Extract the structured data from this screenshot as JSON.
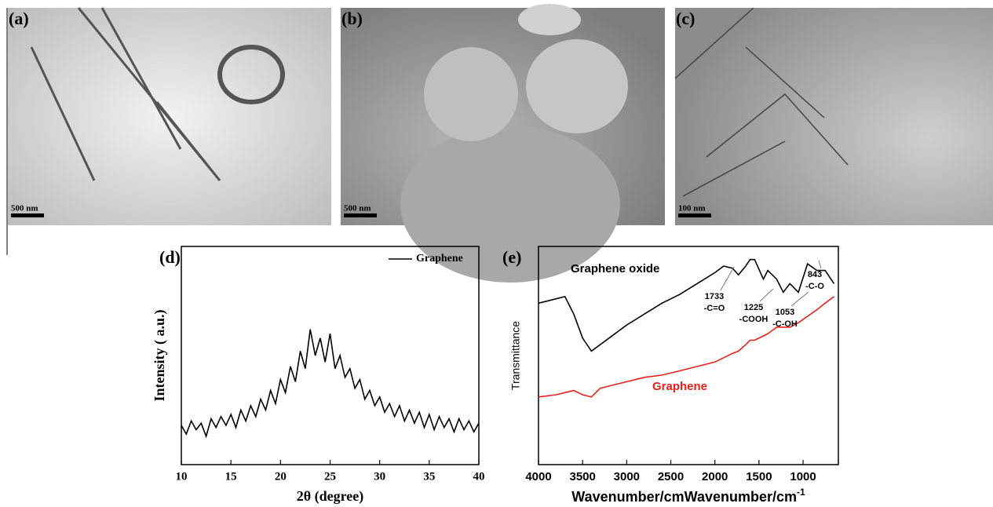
{
  "panels": [
    {
      "label": "(a)",
      "scale_bar": "500 nm"
    },
    {
      "label": "(b)",
      "scale_bar": "500 nm"
    },
    {
      "label": "(c)",
      "scale_bar": "100 nm"
    }
  ],
  "chart_data": [
    {
      "type": "line",
      "panel_label": "(d)",
      "xlabel": "2θ (degree)",
      "ylabel": "Intensity ( a.u.)",
      "legend": "upper right",
      "x": [
        10,
        10.5,
        11,
        11.5,
        12,
        12.5,
        13,
        13.5,
        14,
        14.5,
        15,
        15.5,
        16,
        16.5,
        17,
        17.5,
        18,
        18.5,
        19,
        19.5,
        20,
        20.5,
        21,
        21.5,
        22,
        22.5,
        23,
        23.5,
        24,
        24.5,
        25,
        25.5,
        26,
        26.5,
        27,
        27.5,
        28,
        28.5,
        29,
        29.5,
        30,
        30.5,
        31,
        31.5,
        32,
        32.5,
        33,
        33.5,
        34,
        34.5,
        35,
        35.5,
        36,
        36.5,
        37,
        37.5,
        38,
        38.5,
        39,
        39.5,
        40
      ],
      "series": [
        {
          "name": "Graphene",
          "color": "#000000",
          "values": [
            18,
            14,
            20,
            16,
            19,
            13,
            21,
            17,
            22,
            18,
            23,
            17,
            25,
            20,
            27,
            22,
            30,
            25,
            34,
            28,
            39,
            33,
            45,
            38,
            52,
            44,
            62,
            50,
            58,
            47,
            60,
            44,
            50,
            40,
            44,
            35,
            39,
            30,
            34,
            27,
            31,
            24,
            28,
            22,
            27,
            20,
            25,
            19,
            24,
            17,
            23,
            16,
            22,
            17,
            21,
            15,
            21,
            16,
            20,
            15,
            19
          ]
        }
      ],
      "xlim": [
        10,
        40
      ],
      "xticks": [
        10,
        15,
        20,
        25,
        30,
        35,
        40
      ],
      "ylim": [
        0,
        100
      ]
    },
    {
      "type": "line",
      "panel_label": "(e)",
      "xlabel": "Wavenumber/cm",
      "xlabel_sup": "-1",
      "ylabel": "Transmittance",
      "x": [
        4000,
        3800,
        3700,
        3600,
        3500,
        3400,
        3300,
        3200,
        3000,
        2800,
        2600,
        2400,
        2200,
        2000,
        1900,
        1800,
        1733,
        1650,
        1600,
        1550,
        1450,
        1400,
        1300,
        1225,
        1150,
        1053,
        950,
        843,
        750,
        650
      ],
      "series": [
        {
          "name": "Graphene oxide",
          "color": "#000000",
          "values": [
            74,
            76,
            77,
            69,
            58,
            52,
            55,
            58,
            64,
            69,
            74,
            78,
            83,
            88,
            91,
            90,
            87,
            91,
            94,
            94,
            85,
            89,
            85,
            79,
            83,
            79,
            92,
            89,
            89,
            83
          ]
        },
        {
          "name": "Graphene",
          "color": "#e8201c",
          "values": [
            31,
            32,
            33,
            34,
            32,
            31,
            35,
            36,
            38,
            40,
            41,
            43,
            45,
            47,
            49,
            51,
            52,
            55,
            57,
            57,
            59,
            60,
            63,
            63,
            63,
            65,
            68,
            71,
            74,
            77
          ]
        }
      ],
      "annotations": [
        {
          "wavenumber": "1733",
          "group": "-C=O"
        },
        {
          "wavenumber": "1225",
          "group": "-COOH"
        },
        {
          "wavenumber": "1053",
          "group": "-C-OH"
        },
        {
          "wavenumber": "843",
          "group": "-C-O"
        }
      ],
      "xlim": [
        4000,
        600
      ],
      "xticks": [
        4000,
        3500,
        3000,
        2500,
        2000,
        1500,
        1000
      ],
      "ylim": [
        0,
        100
      ]
    }
  ]
}
